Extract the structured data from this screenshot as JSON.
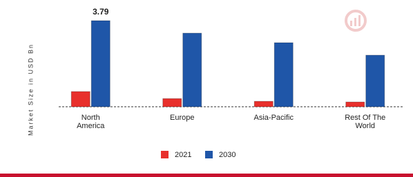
{
  "chart_data": {
    "type": "bar",
    "y_label": "Market Size in USD Bn",
    "categories": [
      "North\nAmerica",
      "Europe",
      "Asia-Pacific",
      "Rest Of The\nWorld"
    ],
    "series": [
      {
        "name": "2021",
        "color": "#e8302c",
        "values": [
          0.67,
          0.36,
          0.24,
          0.21
        ]
      },
      {
        "name": "2030",
        "color": "#1f56a8",
        "values": [
          3.79,
          3.24,
          2.82,
          2.27
        ]
      }
    ]
  }
}
